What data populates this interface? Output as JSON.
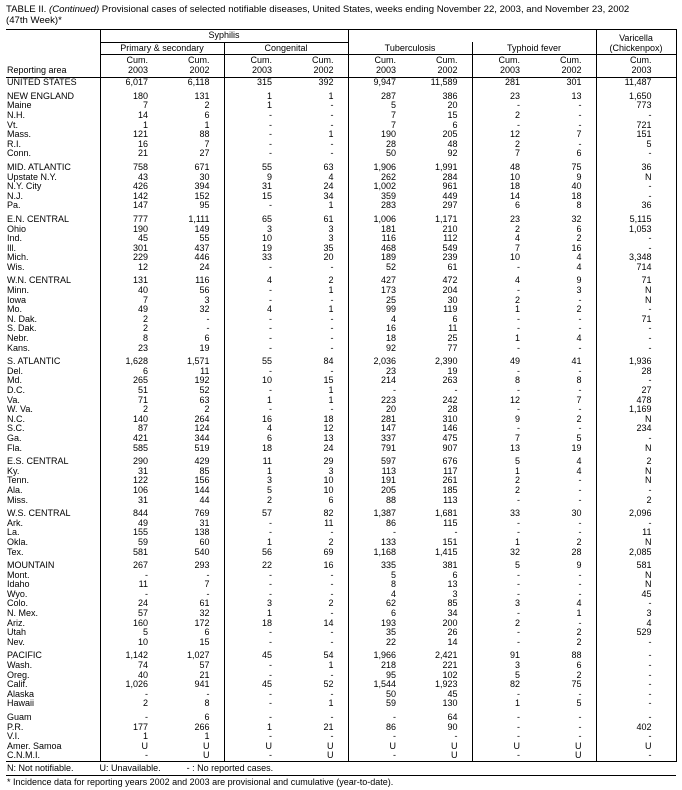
{
  "title": {
    "bold": "TABLE II.",
    "continued": " (Continued)",
    "line1_rest": " Provisional cases of selected notifiable diseases, United States, weeks ending November 22, 2003, and November 23, 2002",
    "line2": "(47th Week)*"
  },
  "header": {
    "reporting_area": "Reporting area",
    "syphilis": "Syphilis",
    "primary_secondary": "Primary & secondary",
    "congenital": "Congenital",
    "tuberculosis": "Tuberculosis",
    "typhoid": "Typhoid fever",
    "varicella_line1": "Varicella",
    "varicella_line2": "(Chickenpox)",
    "cols": [
      {
        "l1": "Cum.",
        "l2": "2003"
      },
      {
        "l1": "Cum.",
        "l2": "2002"
      },
      {
        "l1": "Cum.",
        "l2": "2003"
      },
      {
        "l1": "Cum.",
        "l2": "2002"
      },
      {
        "l1": "Cum.",
        "l2": "2003"
      },
      {
        "l1": "Cum.",
        "l2": "2002"
      },
      {
        "l1": "Cum.",
        "l2": "2003"
      },
      {
        "l1": "Cum.",
        "l2": "2002"
      },
      {
        "l1": "Cum.",
        "l2": "2003"
      }
    ]
  },
  "table": {
    "rows": [
      {
        "area": "UNITED STATES",
        "type": "total",
        "values": [
          "6,017",
          "6,118",
          "315",
          "392",
          "9,947",
          "11,589",
          "281",
          "301",
          "11,487"
        ]
      },
      {
        "area": "NEW ENGLAND",
        "type": "region",
        "gap": true,
        "values": [
          "180",
          "131",
          "1",
          "1",
          "287",
          "386",
          "23",
          "13",
          "1,650"
        ]
      },
      {
        "area": "Maine",
        "values": [
          "7",
          "2",
          "1",
          "-",
          "5",
          "20",
          "-",
          "-",
          "773"
        ]
      },
      {
        "area": "N.H.",
        "values": [
          "14",
          "6",
          "-",
          "-",
          "7",
          "15",
          "2",
          "-",
          "-"
        ]
      },
      {
        "area": "Vt.",
        "values": [
          "1",
          "1",
          "-",
          "-",
          "7",
          "6",
          "-",
          "-",
          "721"
        ]
      },
      {
        "area": "Mass.",
        "values": [
          "121",
          "88",
          "-",
          "1",
          "190",
          "205",
          "12",
          "7",
          "151"
        ]
      },
      {
        "area": "R.I.",
        "values": [
          "16",
          "7",
          "-",
          "-",
          "28",
          "48",
          "2",
          "-",
          "5"
        ]
      },
      {
        "area": "Conn.",
        "values": [
          "21",
          "27",
          "-",
          "-",
          "50",
          "92",
          "7",
          "6",
          "-"
        ]
      },
      {
        "area": "MID. ATLANTIC",
        "type": "region",
        "gap": true,
        "values": [
          "758",
          "671",
          "55",
          "63",
          "1,906",
          "1,991",
          "48",
          "75",
          "36"
        ]
      },
      {
        "area": "Upstate N.Y.",
        "values": [
          "43",
          "30",
          "9",
          "4",
          "262",
          "284",
          "10",
          "9",
          "N"
        ]
      },
      {
        "area": "N.Y. City",
        "values": [
          "426",
          "394",
          "31",
          "24",
          "1,002",
          "961",
          "18",
          "40",
          "-"
        ]
      },
      {
        "area": "N.J.",
        "values": [
          "142",
          "152",
          "15",
          "34",
          "359",
          "449",
          "14",
          "18",
          "-"
        ]
      },
      {
        "area": "Pa.",
        "values": [
          "147",
          "95",
          "-",
          "1",
          "283",
          "297",
          "6",
          "8",
          "36"
        ]
      },
      {
        "area": "E.N. CENTRAL",
        "type": "region",
        "gap": true,
        "values": [
          "777",
          "1,111",
          "65",
          "61",
          "1,006",
          "1,171",
          "23",
          "32",
          "5,115"
        ]
      },
      {
        "area": "Ohio",
        "values": [
          "190",
          "149",
          "3",
          "3",
          "181",
          "210",
          "2",
          "6",
          "1,053"
        ]
      },
      {
        "area": "Ind.",
        "values": [
          "45",
          "55",
          "10",
          "3",
          "116",
          "112",
          "4",
          "2",
          "-"
        ]
      },
      {
        "area": "Ill.",
        "values": [
          "301",
          "437",
          "19",
          "35",
          "468",
          "549",
          "7",
          "16",
          "-"
        ]
      },
      {
        "area": "Mich.",
        "values": [
          "229",
          "446",
          "33",
          "20",
          "189",
          "239",
          "10",
          "4",
          "3,348"
        ]
      },
      {
        "area": "Wis.",
        "values": [
          "12",
          "24",
          "-",
          "-",
          "52",
          "61",
          "-",
          "4",
          "714"
        ]
      },
      {
        "area": "W.N. CENTRAL",
        "type": "region",
        "gap": true,
        "values": [
          "131",
          "116",
          "4",
          "2",
          "427",
          "472",
          "4",
          "9",
          "71"
        ]
      },
      {
        "area": "Minn.",
        "values": [
          "40",
          "56",
          "-",
          "1",
          "173",
          "204",
          "-",
          "3",
          "N"
        ]
      },
      {
        "area": "Iowa",
        "values": [
          "7",
          "3",
          "-",
          "-",
          "25",
          "30",
          "2",
          "-",
          "N"
        ]
      },
      {
        "area": "Mo.",
        "values": [
          "49",
          "32",
          "4",
          "1",
          "99",
          "119",
          "1",
          "2",
          "-"
        ]
      },
      {
        "area": "N. Dak.",
        "values": [
          "2",
          "-",
          "-",
          "-",
          "4",
          "6",
          "-",
          "-",
          "71"
        ]
      },
      {
        "area": "S. Dak.",
        "values": [
          "2",
          "-",
          "-",
          "-",
          "16",
          "11",
          "-",
          "-",
          "-"
        ]
      },
      {
        "area": "Nebr.",
        "values": [
          "8",
          "6",
          "-",
          "-",
          "18",
          "25",
          "1",
          "4",
          "-"
        ]
      },
      {
        "area": "Kans.",
        "values": [
          "23",
          "19",
          "-",
          "-",
          "92",
          "77",
          "-",
          "-",
          "-"
        ]
      },
      {
        "area": "S. ATLANTIC",
        "type": "region",
        "gap": true,
        "values": [
          "1,628",
          "1,571",
          "55",
          "84",
          "2,036",
          "2,390",
          "49",
          "41",
          "1,936"
        ]
      },
      {
        "area": "Del.",
        "values": [
          "6",
          "11",
          "-",
          "-",
          "23",
          "19",
          "-",
          "-",
          "28"
        ]
      },
      {
        "area": "Md.",
        "values": [
          "265",
          "192",
          "10",
          "15",
          "214",
          "263",
          "8",
          "8",
          "-"
        ]
      },
      {
        "area": "D.C.",
        "values": [
          "51",
          "52",
          "-",
          "1",
          "-",
          "-",
          "-",
          "-",
          "27"
        ]
      },
      {
        "area": "Va.",
        "values": [
          "71",
          "63",
          "1",
          "1",
          "223",
          "242",
          "12",
          "7",
          "478"
        ]
      },
      {
        "area": "W. Va.",
        "values": [
          "2",
          "2",
          "-",
          "-",
          "20",
          "28",
          "-",
          "-",
          "1,169"
        ]
      },
      {
        "area": "N.C.",
        "values": [
          "140",
          "264",
          "16",
          "18",
          "281",
          "310",
          "9",
          "2",
          "N"
        ]
      },
      {
        "area": "S.C.",
        "values": [
          "87",
          "124",
          "4",
          "12",
          "147",
          "146",
          "-",
          "-",
          "234"
        ]
      },
      {
        "area": "Ga.",
        "values": [
          "421",
          "344",
          "6",
          "13",
          "337",
          "475",
          "7",
          "5",
          "-"
        ]
      },
      {
        "area": "Fla.",
        "values": [
          "585",
          "519",
          "18",
          "24",
          "791",
          "907",
          "13",
          "19",
          "N"
        ]
      },
      {
        "area": "E.S. CENTRAL",
        "type": "region",
        "gap": true,
        "values": [
          "290",
          "429",
          "11",
          "29",
          "597",
          "676",
          "5",
          "4",
          "2"
        ]
      },
      {
        "area": "Ky.",
        "values": [
          "31",
          "85",
          "1",
          "3",
          "113",
          "117",
          "1",
          "4",
          "N"
        ]
      },
      {
        "area": "Tenn.",
        "values": [
          "122",
          "156",
          "3",
          "10",
          "191",
          "261",
          "2",
          "-",
          "N"
        ]
      },
      {
        "area": "Ala.",
        "values": [
          "106",
          "144",
          "5",
          "10",
          "205",
          "185",
          "2",
          "-",
          "-"
        ]
      },
      {
        "area": "Miss.",
        "values": [
          "31",
          "44",
          "2",
          "6",
          "88",
          "113",
          "-",
          "-",
          "2"
        ]
      },
      {
        "area": "W.S. CENTRAL",
        "type": "region",
        "gap": true,
        "values": [
          "844",
          "769",
          "57",
          "82",
          "1,387",
          "1,681",
          "33",
          "30",
          "2,096"
        ]
      },
      {
        "area": "Ark.",
        "values": [
          "49",
          "31",
          "-",
          "11",
          "86",
          "115",
          "-",
          "-",
          "-"
        ]
      },
      {
        "area": "La.",
        "values": [
          "155",
          "138",
          "-",
          "-",
          "-",
          "-",
          "-",
          "-",
          "11"
        ]
      },
      {
        "area": "Okla.",
        "values": [
          "59",
          "60",
          "1",
          "2",
          "133",
          "151",
          "1",
          "2",
          "N"
        ]
      },
      {
        "area": "Tex.",
        "values": [
          "581",
          "540",
          "56",
          "69",
          "1,168",
          "1,415",
          "32",
          "28",
          "2,085"
        ]
      },
      {
        "area": "MOUNTAIN",
        "type": "region",
        "gap": true,
        "values": [
          "267",
          "293",
          "22",
          "16",
          "335",
          "381",
          "5",
          "9",
          "581"
        ]
      },
      {
        "area": "Mont.",
        "values": [
          "-",
          "-",
          "-",
          "-",
          "5",
          "6",
          "-",
          "-",
          "N"
        ]
      },
      {
        "area": "Idaho",
        "values": [
          "11",
          "7",
          "-",
          "-",
          "8",
          "13",
          "-",
          "-",
          "N"
        ]
      },
      {
        "area": "Wyo.",
        "values": [
          "-",
          "-",
          "-",
          "-",
          "4",
          "3",
          "-",
          "-",
          "45"
        ]
      },
      {
        "area": "Colo.",
        "values": [
          "24",
          "61",
          "3",
          "2",
          "62",
          "85",
          "3",
          "4",
          "-"
        ]
      },
      {
        "area": "N. Mex.",
        "values": [
          "57",
          "32",
          "1",
          "-",
          "6",
          "34",
          "-",
          "1",
          "3"
        ]
      },
      {
        "area": "Ariz.",
        "values": [
          "160",
          "172",
          "18",
          "14",
          "193",
          "200",
          "2",
          "-",
          "4"
        ]
      },
      {
        "area": "Utah",
        "values": [
          "5",
          "6",
          "-",
          "-",
          "35",
          "26",
          "-",
          "2",
          "529"
        ]
      },
      {
        "area": "Nev.",
        "values": [
          "10",
          "15",
          "-",
          "-",
          "22",
          "14",
          "-",
          "2",
          "-"
        ]
      },
      {
        "area": "PACIFIC",
        "type": "region",
        "gap": true,
        "values": [
          "1,142",
          "1,027",
          "45",
          "54",
          "1,966",
          "2,421",
          "91",
          "88",
          "-"
        ]
      },
      {
        "area": "Wash.",
        "values": [
          "74",
          "57",
          "-",
          "1",
          "218",
          "221",
          "3",
          "6",
          "-"
        ]
      },
      {
        "area": "Oreg.",
        "values": [
          "40",
          "21",
          "-",
          "-",
          "95",
          "102",
          "5",
          "2",
          "-"
        ]
      },
      {
        "area": "Calif.",
        "values": [
          "1,026",
          "941",
          "45",
          "52",
          "1,544",
          "1,923",
          "82",
          "75",
          "-"
        ]
      },
      {
        "area": "Alaska",
        "values": [
          "-",
          "-",
          "-",
          "-",
          "50",
          "45",
          "-",
          "-",
          "-"
        ]
      },
      {
        "area": "Hawaii",
        "values": [
          "2",
          "8",
          "-",
          "1",
          "59",
          "130",
          "1",
          "5",
          "-"
        ]
      },
      {
        "area": "Guam",
        "type": "territory",
        "gap": true,
        "values": [
          "-",
          "6",
          "-",
          "-",
          "-",
          "64",
          "-",
          "-",
          "-"
        ]
      },
      {
        "area": "P.R.",
        "type": "territory",
        "values": [
          "177",
          "266",
          "1",
          "21",
          "86",
          "90",
          "-",
          "-",
          "402"
        ]
      },
      {
        "area": "V.I.",
        "type": "territory",
        "values": [
          "1",
          "1",
          "-",
          "-",
          "-",
          "-",
          "-",
          "-",
          "-"
        ]
      },
      {
        "area": "Amer. Samoa",
        "type": "territory",
        "values": [
          "U",
          "U",
          "U",
          "U",
          "U",
          "U",
          "U",
          "U",
          "U"
        ]
      },
      {
        "area": "C.N.M.I.",
        "type": "territory",
        "values": [
          "-",
          "U",
          "-",
          "U",
          "-",
          "U",
          "-",
          "U",
          "-"
        ]
      }
    ]
  },
  "footnotes": {
    "legend": [
      "N: Not notifiable.",
      "U: Unavailable.",
      "- : No reported cases."
    ],
    "note": "* Incidence data for reporting years 2002 and 2003 are provisional and cumulative (year-to-date)."
  }
}
